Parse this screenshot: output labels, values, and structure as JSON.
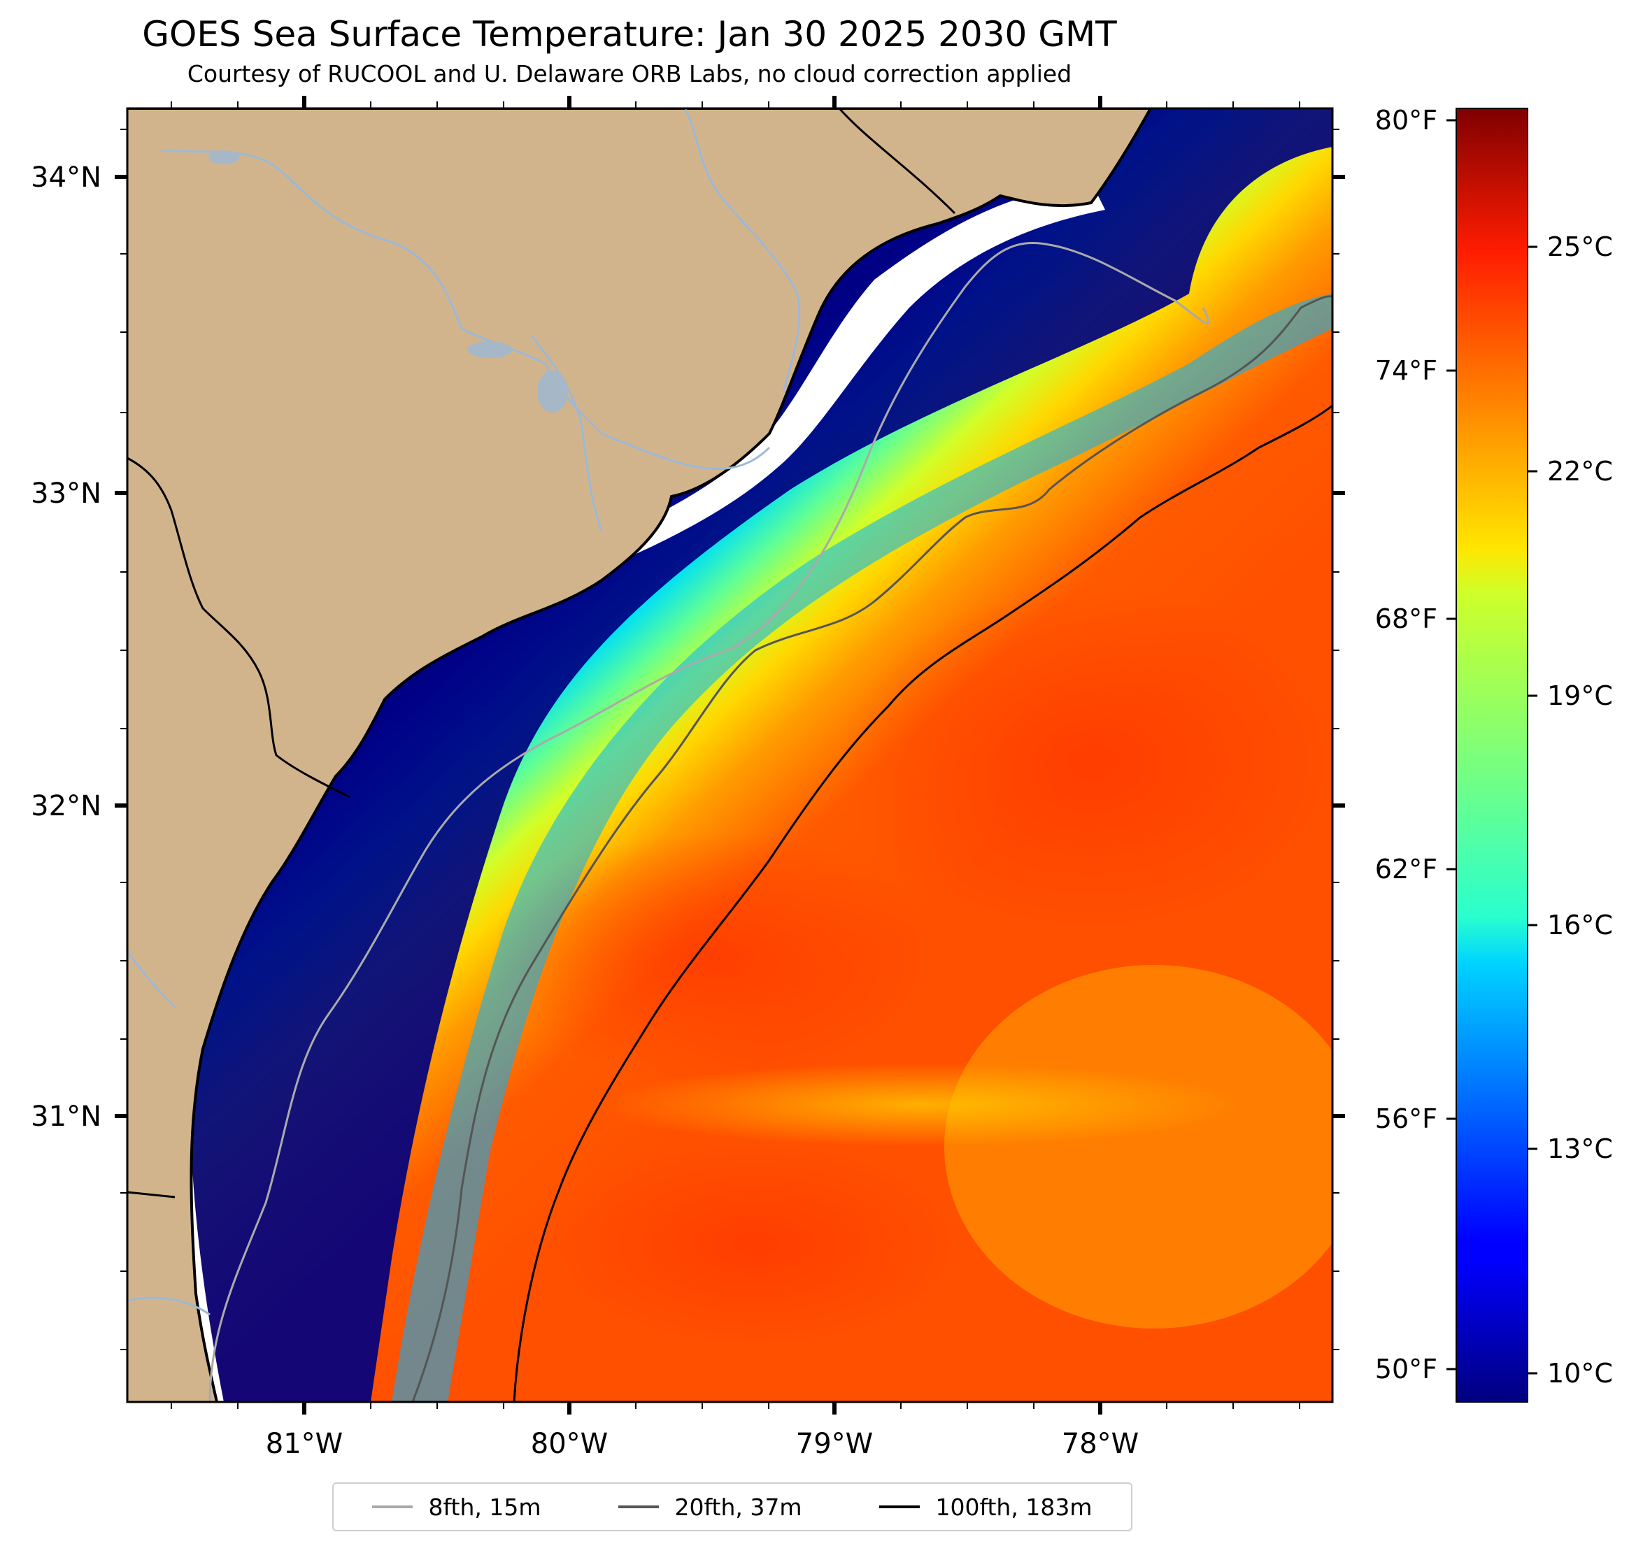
{
  "title": "GOES Sea Surface Temperature: Jan 30 2025 2030 GMT",
  "subtitle": "Courtesy of RUCOOL and U. Delaware ORB Labs, no cloud correction applied",
  "map": {
    "lon_range": [
      -81.67,
      -77.12
    ],
    "lat_range": [
      30.06,
      34.22
    ],
    "lon_ticks": [
      "81°W",
      "80°W",
      "79°W",
      "78°W"
    ],
    "lat_ticks": [
      "34°N",
      "33°N",
      "32°N",
      "31°N"
    ],
    "land_color": "#d2b48c",
    "river_color": "#9db8d6"
  },
  "colorbar": {
    "colormap": "jet",
    "celsius_range": [
      9.5,
      27.0
    ],
    "celsius_ticks": [
      "10°C",
      "13°C",
      "16°C",
      "19°C",
      "22°C",
      "25°C"
    ],
    "fahrenheit_ticks": [
      "50°F",
      "56°F",
      "62°F",
      "68°F",
      "74°F",
      "80°F"
    ]
  },
  "legend": [
    {
      "label": "8fth, 15m",
      "color": "#aaaaaa"
    },
    {
      "label": "20fth, 37m",
      "color": "#555555"
    },
    {
      "label": "100fth, 183m",
      "color": "#000000"
    }
  ]
}
